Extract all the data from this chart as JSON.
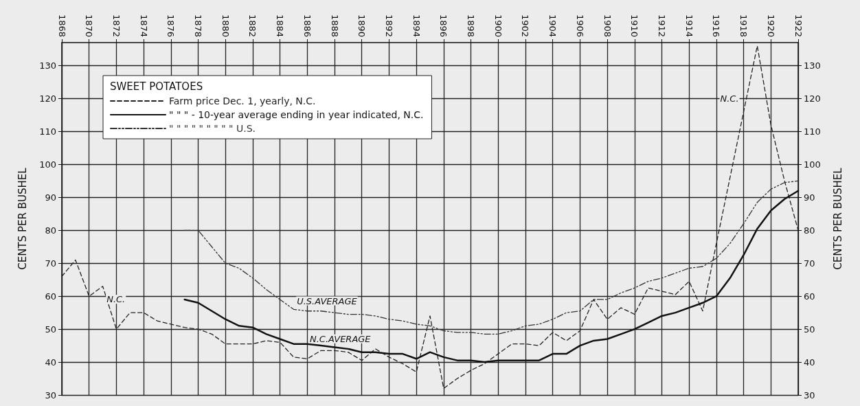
{
  "chart_data": {
    "type": "line",
    "ylabel": "CENTS PER BUSHEL",
    "y2label": "CENTS PER BUSHEL",
    "legend_title": "SWEET POTATOES",
    "legend": "top left",
    "grid": true,
    "marker": "none",
    "xlim": [
      1868,
      1922
    ],
    "xticks": [
      1868,
      1870,
      1872,
      1874,
      1876,
      1878,
      1880,
      1882,
      1884,
      1886,
      1888,
      1890,
      1892,
      1894,
      1896,
      1898,
      1900,
      1902,
      1904,
      1906,
      1908,
      1910,
      1912,
      1914,
      1916,
      1918,
      1920,
      1922
    ],
    "ylim": [
      30,
      137
    ],
    "yticks": [
      30,
      40,
      50,
      60,
      70,
      80,
      90,
      100,
      110,
      120,
      130
    ],
    "y2lim": [
      30,
      137
    ],
    "y2ticks": [
      30,
      40,
      50,
      60,
      70,
      80,
      90,
      100,
      110,
      120,
      130
    ],
    "x": [
      1868,
      1869,
      1870,
      1871,
      1872,
      1873,
      1874,
      1875,
      1876,
      1877,
      1878,
      1879,
      1880,
      1881,
      1882,
      1883,
      1884,
      1885,
      1886,
      1887,
      1888,
      1889,
      1890,
      1891,
      1892,
      1893,
      1894,
      1895,
      1896,
      1897,
      1898,
      1899,
      1900,
      1901,
      1902,
      1903,
      1904,
      1905,
      1906,
      1907,
      1908,
      1909,
      1910,
      1911,
      1912,
      1913,
      1914,
      1915,
      1916,
      1917,
      1918,
      1919,
      1920,
      1921,
      1922
    ],
    "series": [
      {
        "name": "Farm price Dec. 1, yearly, N.C.",
        "color": "#222222",
        "line_style": "dashed",
        "values": [
          66,
          71,
          60,
          63,
          50,
          55,
          55,
          52.5,
          51.5,
          50.5,
          50,
          48.5,
          45.5,
          45.5,
          45.5,
          46.5,
          46,
          41.5,
          41,
          43.5,
          43.5,
          43,
          40.5,
          44,
          41.5,
          39.5,
          37,
          54,
          32,
          35,
          37.5,
          39.5,
          42.5,
          45.5,
          45.5,
          45,
          49,
          46.5,
          49.5,
          59,
          53,
          56.5,
          54.5,
          62.5,
          61.5,
          60.5,
          64.5,
          55.5,
          76,
          96,
          116,
          136,
          112,
          95,
          80
        ]
      },
      {
        "name": "\" \" \" - 10-year average ending in year indicated, N.C.",
        "color": "#111111",
        "line_style": "solid",
        "values": [
          null,
          null,
          null,
          null,
          null,
          null,
          null,
          null,
          null,
          59,
          58,
          55.5,
          53,
          51,
          50.5,
          48.5,
          47,
          45.5,
          45.5,
          45,
          44.5,
          44,
          43,
          43,
          42.5,
          42.5,
          41,
          43,
          41.5,
          40.5,
          40.5,
          40,
          40.5,
          40.5,
          40.5,
          40.5,
          42.5,
          42.5,
          45,
          46.5,
          47,
          48.5,
          50,
          52,
          54,
          55,
          56.5,
          58,
          60,
          65.5,
          72.5,
          80.5,
          86,
          89.5,
          92
        ]
      },
      {
        "name": "\" \" \" \" \" \" \" \" \" U.S.",
        "color": "#333333",
        "line_style": "dotted",
        "values": [
          null,
          null,
          null,
          null,
          null,
          null,
          null,
          null,
          null,
          80,
          80,
          75,
          70,
          68.5,
          65.5,
          62,
          59,
          56,
          55.5,
          55.5,
          55,
          54.5,
          54.5,
          54,
          53,
          52.5,
          51.5,
          51,
          49.5,
          49,
          49,
          48.5,
          48.5,
          49.5,
          51,
          51.5,
          53,
          55,
          55.5,
          59,
          59,
          61,
          62.5,
          64.5,
          65.5,
          67,
          68.5,
          69,
          71.5,
          76,
          82,
          88.5,
          92.5,
          94.5,
          95
        ]
      }
    ],
    "annotations": [
      {
        "text": "N.C.",
        "x": 1873,
        "y": 55
      },
      {
        "text": "U.S.AVERAGE",
        "x": 1890,
        "y": 54.5
      },
      {
        "text": "N.C.AVERAGE",
        "x": 1891,
        "y": 43
      },
      {
        "text": "N.C.",
        "x": 1918,
        "y": 116
      }
    ]
  }
}
